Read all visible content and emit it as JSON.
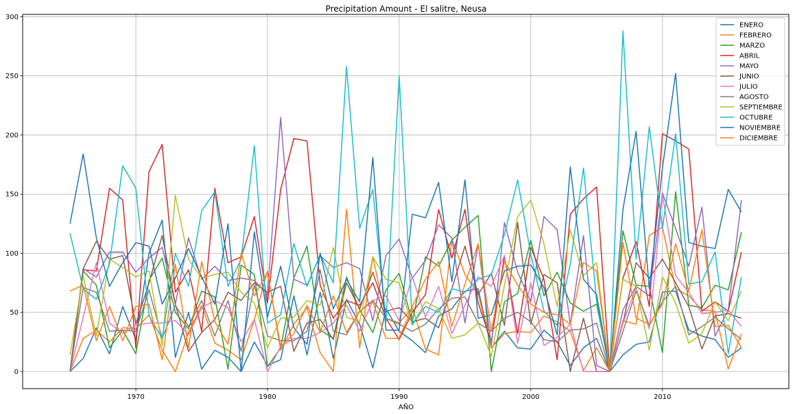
{
  "chart_data": {
    "type": "line",
    "title": "Precipitation Amount - El salitre, Neusa",
    "xlabel": "AÑO",
    "ylabel": "",
    "xlim": [
      1961.4,
      2019.6
    ],
    "ylim": [
      -14.5,
      302
    ],
    "xticks": [
      1970,
      1980,
      1990,
      2000,
      2010
    ],
    "yticks": [
      0,
      50,
      100,
      150,
      200,
      250,
      300
    ],
    "grid": true,
    "legend_position": "top-right",
    "x": [
      1965,
      1966,
      1967,
      1968,
      1969,
      1970,
      1971,
      1972,
      1973,
      1974,
      1975,
      1976,
      1977,
      1978,
      1979,
      1980,
      1981,
      1982,
      1983,
      1984,
      1985,
      1986,
      1987,
      1988,
      1989,
      1990,
      1991,
      1992,
      1993,
      1994,
      1995,
      1996,
      1997,
      1998,
      1999,
      2000,
      2001,
      2002,
      2003,
      2004,
      2005,
      2006,
      2007,
      2008,
      2009,
      2010,
      2011,
      2012,
      2013,
      2014,
      2015,
      2016
    ],
    "series": [
      {
        "name": "ENERO",
        "color": "#1f77b4",
        "values": [
          0,
          11,
          37,
          15,
          55,
          27,
          100,
          128,
          12,
          50,
          2,
          18,
          12,
          0,
          25,
          5,
          10,
          64,
          14,
          67,
          11,
          61,
          40,
          3,
          53,
          34,
          26,
          16,
          47,
          53,
          68,
          70,
          20,
          34,
          20,
          19,
          35,
          25,
          5,
          20,
          28,
          0,
          14,
          23,
          25,
          67,
          68,
          35,
          30,
          27,
          12,
          20
        ]
      },
      {
        "name": "FEBRERO",
        "color": "#ff7f0e",
        "values": [
          0,
          28,
          35,
          25,
          37,
          36,
          48,
          18,
          0,
          33,
          56,
          24,
          18,
          10,
          44,
          85,
          18,
          40,
          54,
          16,
          0,
          137,
          20,
          97,
          45,
          41,
          54,
          19,
          14,
          112,
          82,
          66,
          20,
          32,
          34,
          33,
          47,
          42,
          34,
          1,
          20,
          0,
          43,
          40,
          115,
          122,
          70,
          64,
          52,
          51,
          2,
          32
        ]
      },
      {
        "name": "MARZO",
        "color": "#2ca02c",
        "values": [
          0,
          85,
          73,
          20,
          35,
          15,
          77,
          96,
          50,
          36,
          68,
          63,
          2,
          90,
          82,
          4,
          20,
          79,
          106,
          35,
          28,
          80,
          52,
          33,
          69,
          83,
          42,
          97,
          89,
          111,
          122,
          132,
          0,
          59,
          66,
          111,
          64,
          84,
          58,
          51,
          57,
          1,
          119,
          73,
          72,
          16,
          152,
          56,
          54,
          73,
          69,
          118
        ]
      },
      {
        "name": "ABRIL",
        "color": "#d62728",
        "values": [
          0,
          86,
          85,
          155,
          145,
          20,
          169,
          192,
          67,
          86,
          34,
          155,
          92,
          97,
          131,
          58,
          154,
          197,
          195,
          73,
          45,
          60,
          56,
          75,
          45,
          27,
          50,
          65,
          137,
          96,
          137,
          58,
          25,
          98,
          32,
          105,
          78,
          10,
          133,
          146,
          156,
          0,
          79,
          110,
          55,
          201,
          195,
          188,
          51,
          59,
          51,
          101
        ]
      },
      {
        "name": "MAYO",
        "color": "#9467bd",
        "values": [
          0,
          87,
          80,
          101,
          101,
          84,
          96,
          105,
          57,
          113,
          78,
          89,
          77,
          79,
          77,
          65,
          215,
          78,
          73,
          98,
          88,
          92,
          87,
          43,
          98,
          112,
          79,
          94,
          124,
          113,
          41,
          108,
          22,
          126,
          84,
          59,
          131,
          120,
          40,
          115,
          5,
          0,
          52,
          72,
          64,
          151,
          121,
          89,
          139,
          30,
          52,
          145
        ]
      },
      {
        "name": "JUNIO",
        "color": "#8c564b",
        "values": [
          0,
          87,
          110,
          95,
          98,
          40,
          75,
          115,
          57,
          17,
          33,
          44,
          67,
          60,
          75,
          67,
          72,
          17,
          41,
          44,
          27,
          75,
          53,
          84,
          51,
          54,
          42,
          45,
          37,
          70,
          106,
          65,
          83,
          39,
          126,
          40,
          82,
          75,
          0,
          45,
          0,
          0,
          41,
          92,
          79,
          95,
          75,
          55,
          19,
          47,
          49,
          45
        ]
      },
      {
        "name": "JULIO",
        "color": "#e377c2",
        "values": [
          0,
          46,
          92,
          41,
          32,
          39,
          41,
          41,
          43,
          31,
          54,
          60,
          54,
          25,
          44,
          0,
          21,
          28,
          28,
          33,
          41,
          56,
          34,
          60,
          64,
          43,
          80,
          46,
          72,
          32,
          56,
          80,
          72,
          98,
          24,
          75,
          22,
          29,
          40,
          0,
          0,
          0,
          41,
          71,
          36,
          150,
          81,
          67,
          49,
          50,
          52,
          38
        ]
      },
      {
        "name": "AGOSTO",
        "color": "#7f7f7f",
        "values": [
          0,
          71,
          67,
          34,
          35,
          34,
          69,
          28,
          56,
          38,
          60,
          30,
          60,
          17,
          73,
          30,
          26,
          26,
          34,
          86,
          34,
          31,
          51,
          60,
          45,
          40,
          34,
          40,
          53,
          62,
          63,
          41,
          34,
          45,
          50,
          42,
          27,
          25,
          35,
          36,
          41,
          0,
          34,
          68,
          39,
          59,
          72,
          31,
          38,
          46,
          36,
          27
        ]
      },
      {
        "name": "SEPTIEMBRE",
        "color": "#bcbd22",
        "values": [
          14,
          81,
          30,
          95,
          88,
          80,
          85,
          22,
          149,
          95,
          79,
          82,
          84,
          67,
          58,
          20,
          45,
          46,
          60,
          56,
          105,
          46,
          42,
          97,
          78,
          75,
          39,
          59,
          53,
          28,
          31,
          41,
          13,
          73,
          131,
          145,
          108,
          55,
          120,
          81,
          92,
          0,
          78,
          72,
          18,
          80,
          58,
          24,
          32,
          59,
          43,
          68
        ]
      },
      {
        "name": "OCTUBRE",
        "color": "#17becf",
        "values": [
          117,
          70,
          61,
          91,
          174,
          155,
          47,
          28,
          100,
          72,
          136,
          152,
          72,
          95,
          191,
          41,
          48,
          108,
          72,
          99,
          75,
          258,
          121,
          154,
          42,
          250,
          40,
          55,
          50,
          70,
          67,
          78,
          82,
          116,
          162,
          99,
          51,
          39,
          91,
          172,
          60,
          0,
          288,
          95,
          207,
          121,
          201,
          74,
          76,
          101,
          15,
          80
        ]
      },
      {
        "name": "NOVIEMBRE",
        "color": "#1f77b4",
        "values": [
          125,
          184,
          113,
          72,
          92,
          109,
          106,
          57,
          79,
          104,
          80,
          57,
          125,
          0,
          118,
          46,
          89,
          37,
          23,
          100,
          53,
          78,
          59,
          181,
          35,
          35,
          133,
          130,
          160,
          76,
          162,
          45,
          48,
          85,
          89,
          90,
          71,
          31,
          173,
          78,
          65,
          0,
          137,
          203,
          70,
          172,
          252,
          109,
          106,
          104,
          154,
          135
        ]
      },
      {
        "name": "DICIEMBRE",
        "color": "#ff7f0e",
        "values": [
          68,
          73,
          26,
          55,
          26,
          55,
          57,
          10,
          91,
          20,
          93,
          42,
          23,
          100,
          64,
          84,
          21,
          32,
          56,
          33,
          64,
          33,
          51,
          59,
          28,
          28,
          55,
          78,
          93,
          38,
          74,
          108,
          34,
          93,
          73,
          57,
          50,
          48,
          40,
          92,
          85,
          0,
          109,
          45,
          40,
          57,
          108,
          68,
          120,
          38,
          39,
          20
        ]
      }
    ]
  }
}
